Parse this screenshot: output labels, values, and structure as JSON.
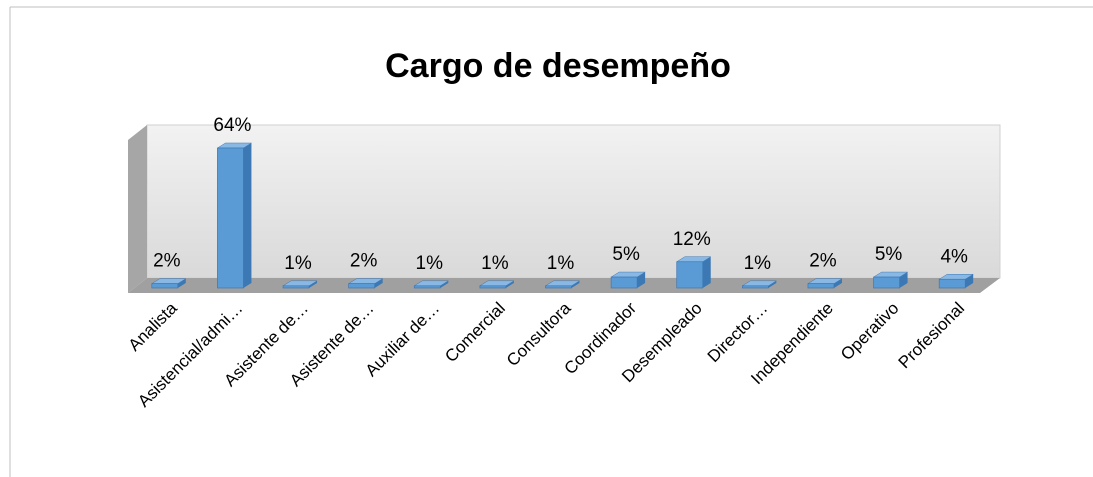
{
  "chart_data": {
    "type": "bar3d",
    "title": "Cargo de desempeño",
    "categories": [
      "Analista",
      "Asistencial/admi…",
      "Asistente de…",
      "Asistente de…",
      "Auxiliar de…",
      "Comercial",
      "Consultora",
      "Coordinador",
      "Desempleado",
      "Director…",
      "Independiente",
      "Operativo",
      "Profesional"
    ],
    "values": [
      2,
      64,
      1,
      2,
      1,
      1,
      1,
      5,
      12,
      1,
      2,
      5,
      4
    ],
    "value_labels": [
      "2%",
      "64%",
      "1%",
      "2%",
      "1%",
      "1%",
      "1%",
      "5%",
      "12%",
      "1%",
      "2%",
      "5%",
      "4%"
    ],
    "color": "#5b9bd5"
  }
}
